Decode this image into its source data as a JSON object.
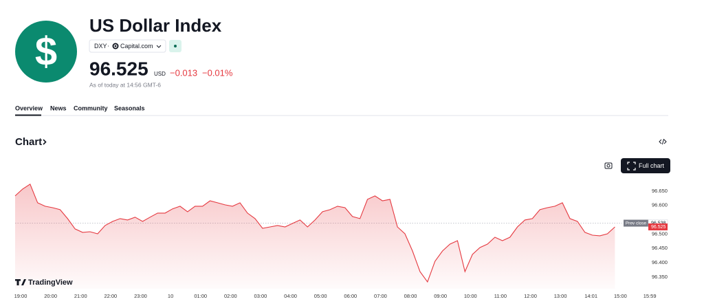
{
  "header": {
    "logo_symbol": "$",
    "title": "US Dollar Index",
    "symbol": "DXY",
    "separator": "·",
    "exchange": "Capital.com",
    "price": "96.525",
    "currency": "USD",
    "change": "−0.013",
    "change_percent": "−0.01%",
    "timestamp": "As of today at 14:56 GMT-6"
  },
  "tabs": [
    "Overview",
    "News",
    "Community",
    "Seasonals"
  ],
  "section_title": "Chart",
  "full_chart_button": "Full chart",
  "watermark": "TradingView",
  "chart_data": {
    "type": "area",
    "color": "#e5383f",
    "x": [
      0,
      0.25,
      0.5,
      0.75,
      1,
      1.25,
      1.5,
      1.75,
      2,
      2.25,
      2.5,
      2.75,
      3,
      3.25,
      3.5,
      3.75,
      4,
      4.25,
      4.5,
      4.75,
      5,
      5.25,
      5.5,
      5.75,
      6,
      6.25,
      6.5,
      6.75,
      7,
      7.25,
      7.5,
      7.75,
      8,
      8.25,
      8.5,
      8.75,
      9,
      9.25,
      9.5,
      9.75,
      10,
      10.25,
      10.5,
      10.75,
      11,
      11.25,
      11.5,
      11.75,
      12,
      12.25,
      12.5,
      12.75,
      13,
      13.25,
      13.5,
      13.75,
      14,
      14.25,
      14.5,
      14.75,
      15,
      15.25,
      15.5,
      15.75,
      16,
      16.25,
      16.5,
      16.75,
      17,
      17.25,
      17.5,
      17.75,
      18,
      18.25,
      18.5,
      18.75,
      19,
      19.25,
      19.5,
      19.75,
      20
    ],
    "values": [
      96.633,
      96.657,
      96.674,
      96.609,
      96.597,
      96.592,
      96.585,
      96.554,
      96.518,
      96.506,
      96.508,
      96.501,
      96.53,
      96.544,
      96.554,
      96.549,
      96.559,
      96.544,
      96.559,
      96.573,
      96.573,
      96.588,
      96.597,
      96.578,
      96.597,
      96.597,
      96.616,
      96.609,
      96.602,
      96.597,
      96.609,
      96.573,
      96.554,
      96.52,
      96.525,
      96.53,
      96.525,
      96.537,
      96.549,
      96.525,
      96.549,
      96.578,
      96.585,
      96.597,
      96.592,
      96.561,
      96.554,
      96.621,
      96.633,
      96.616,
      96.621,
      96.525,
      96.501,
      96.441,
      96.369,
      96.333,
      96.405,
      96.441,
      96.465,
      96.477,
      96.369,
      96.429,
      96.453,
      96.465,
      96.489,
      96.477,
      96.489,
      96.525,
      96.549,
      96.554,
      96.585,
      96.592,
      96.597,
      96.609,
      96.554,
      96.544,
      96.506,
      96.496,
      96.494,
      96.501,
      96.525
    ],
    "xlim": [
      0,
      21
    ],
    "ylim": [
      96.309,
      96.688
    ],
    "xticks": [
      {
        "value": 0,
        "label": "19:00"
      },
      {
        "value": 1,
        "label": "20:00"
      },
      {
        "value": 2,
        "label": "21:00"
      },
      {
        "value": 3,
        "label": "22:00"
      },
      {
        "value": 4,
        "label": "23:00"
      },
      {
        "value": 5,
        "label": "10"
      },
      {
        "value": 6,
        "label": "01:00"
      },
      {
        "value": 7,
        "label": "02:00"
      },
      {
        "value": 8,
        "label": "03:00"
      },
      {
        "value": 9,
        "label": "04:00"
      },
      {
        "value": 10,
        "label": "05:00"
      },
      {
        "value": 11,
        "label": "06:00"
      },
      {
        "value": 12,
        "label": "07:00"
      },
      {
        "value": 13,
        "label": "08:00"
      },
      {
        "value": 14,
        "label": "09:00"
      },
      {
        "value": 15,
        "label": "10:00"
      },
      {
        "value": 16,
        "label": "11:00"
      },
      {
        "value": 17,
        "label": "12:00"
      },
      {
        "value": 18,
        "label": "13:00"
      },
      {
        "value": 19.02,
        "label": "14:01"
      },
      {
        "value": 20,
        "label": "15:00"
      },
      {
        "value": 20.98,
        "label": "15:59"
      }
    ],
    "yticks": [
      {
        "value": 96.65,
        "label": "96.650"
      },
      {
        "value": 96.6,
        "label": "96.600"
      },
      {
        "value": 96.5,
        "label": "96.500"
      },
      {
        "value": 96.45,
        "label": "96.450"
      },
      {
        "value": 96.4,
        "label": "96.400"
      },
      {
        "value": 96.35,
        "label": "96.350"
      }
    ],
    "prev_close": {
      "label": "Prev close",
      "value": 96.538
    },
    "last_price": 96.525
  }
}
